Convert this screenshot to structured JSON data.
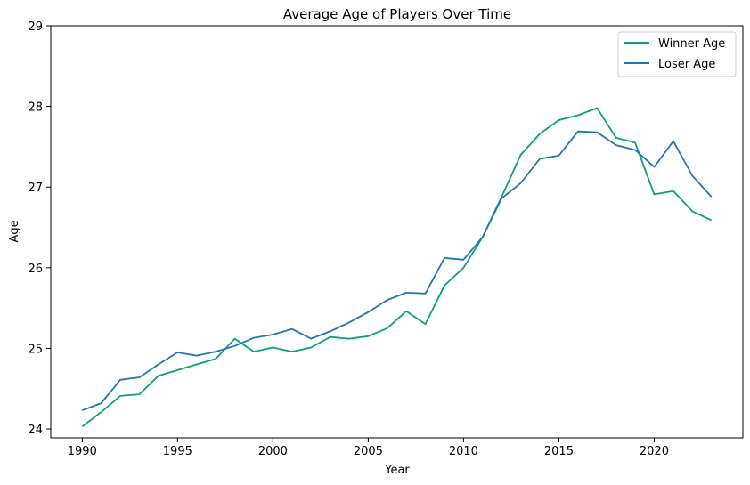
{
  "chart_data": {
    "type": "line",
    "title": "Average Age of Players Over Time",
    "xlabel": "Year",
    "ylabel": "Age",
    "xlim": [
      1988.35,
      2024.65
    ],
    "ylim": [
      23.89,
      29
    ],
    "xticks": [
      "1990",
      "1995",
      "2000",
      "2005",
      "2010",
      "2015",
      "2020"
    ],
    "yticks": [
      "24",
      "25",
      "26",
      "27",
      "28",
      "29"
    ],
    "grid": false,
    "legend_position": "top-right",
    "x": [
      1990,
      1991,
      1992,
      1993,
      1994,
      1995,
      1996,
      1997,
      1998,
      1999,
      2000,
      2001,
      2002,
      2003,
      2004,
      2005,
      2006,
      2007,
      2008,
      2009,
      2010,
      2011,
      2012,
      2013,
      2014,
      2015,
      2016,
      2017,
      2018,
      2019,
      2020,
      2021,
      2022,
      2023
    ],
    "series": [
      {
        "name": "Winner Age",
        "color": "#10a070",
        "values": [
          24.03,
          24.21,
          24.41,
          24.43,
          24.66,
          24.73,
          24.8,
          24.87,
          25.12,
          24.96,
          25.01,
          24.96,
          25.01,
          25.14,
          25.12,
          25.15,
          25.25,
          25.46,
          25.3,
          25.78,
          26.0,
          26.38,
          26.88,
          27.4,
          27.66,
          27.83,
          27.89,
          27.98,
          27.61,
          27.55,
          26.91,
          26.95,
          26.7,
          26.59
        ]
      },
      {
        "name": "Loser Age",
        "color": "#1f77b4",
        "values": [
          24.23,
          24.32,
          24.61,
          24.64,
          24.8,
          24.95,
          24.91,
          24.96,
          25.03,
          25.13,
          25.17,
          25.24,
          25.12,
          25.21,
          25.32,
          25.45,
          25.6,
          25.69,
          25.68,
          26.12,
          26.1,
          26.38,
          26.86,
          27.05,
          27.35,
          27.39,
          27.69,
          27.68,
          27.52,
          27.46,
          27.25,
          27.57,
          27.14,
          26.88
        ]
      }
    ]
  }
}
